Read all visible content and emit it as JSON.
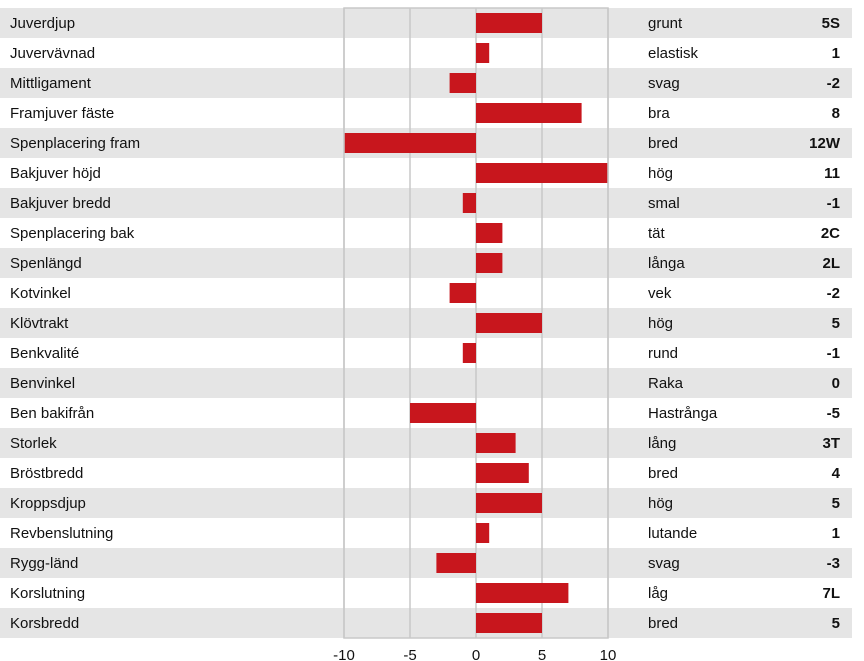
{
  "chart_data": {
    "type": "bar",
    "orientation": "horizontal",
    "categories": [
      "Juverdjup",
      "Juvervävnad",
      "Mittligament",
      "Framjuver fäste",
      "Spenplacering fram",
      "Bakjuver höjd",
      "Bakjuver bredd",
      "Spenplacering bak",
      "Spenlängd",
      "Kotvinkel",
      "Klövtrakt",
      "Benkvalité",
      "Benvinkel",
      "Ben bakifrån",
      "Storlek",
      "Bröstbredd",
      "Kroppsdjup",
      "Revbenslutning",
      "Rygg-länd",
      "Korslutning",
      "Korsbredd"
    ],
    "descriptors": [
      "grunt",
      "elastisk",
      "svag",
      "bra",
      "bred",
      "hög",
      "smal",
      "tät",
      "långa",
      "vek",
      "hög",
      "rund",
      "Raka",
      "Hastrånga",
      "lång",
      "bred",
      "hög",
      "lutande",
      "svag",
      "låg",
      "bred"
    ],
    "values": [
      5,
      1,
      -2,
      8,
      -12,
      11,
      -1,
      2,
      2,
      -2,
      5,
      -1,
      0,
      -5,
      3,
      4,
      5,
      1,
      -3,
      7,
      5
    ],
    "value_labels": [
      "5S",
      "1",
      "-2",
      "8",
      "12W",
      "11",
      "-1",
      "2C",
      "2L",
      "-2",
      "5",
      "-1",
      "0",
      "-5",
      "3T",
      "4",
      "5",
      "1",
      "-3",
      "7L",
      "5"
    ],
    "color": "#c8161d",
    "xlim": [
      -10,
      10
    ],
    "xticks": [
      -10,
      -5,
      0,
      5,
      10
    ],
    "grid": true
  }
}
